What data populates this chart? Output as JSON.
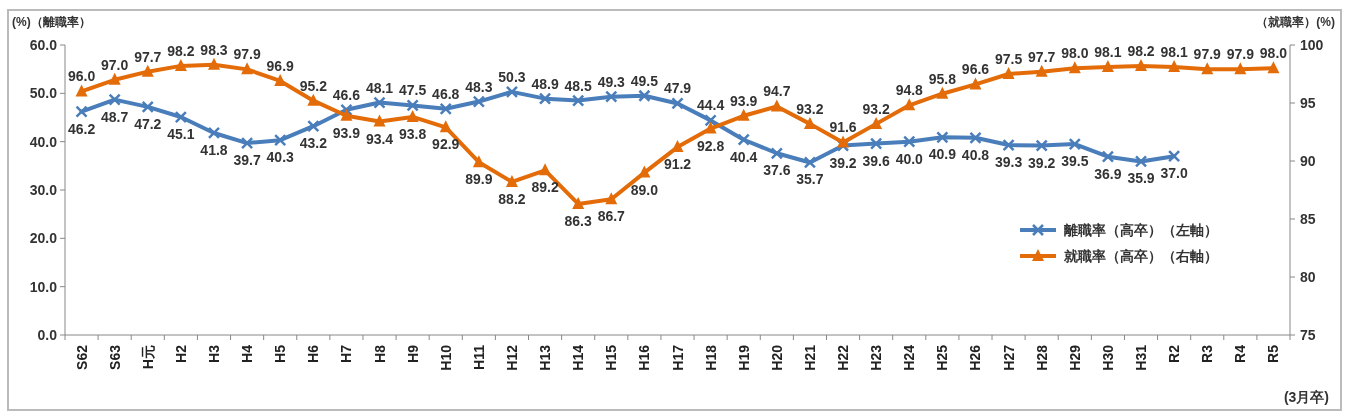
{
  "chart_data": {
    "type": "line",
    "ylabel": "(%)（離職率）",
    "y2label": "（就職率）(%)",
    "categories": [
      "S62",
      "S63",
      "H元",
      "H2",
      "H3",
      "H4",
      "H5",
      "H6",
      "H7",
      "H8",
      "H9",
      "H10",
      "H11",
      "H12",
      "H13",
      "H14",
      "H15",
      "H16",
      "H17",
      "H18",
      "H19",
      "H20",
      "H21",
      "H22",
      "H23",
      "H24",
      "H25",
      "H26",
      "H27",
      "H28",
      "H29",
      "H30",
      "H31",
      "R2",
      "R3",
      "R4",
      "R5"
    ],
    "series": [
      {
        "name": "離職率（高卒）（左軸）",
        "color": "#4a7ebb",
        "marker": "cross",
        "values": [
          46.2,
          48.7,
          47.2,
          45.1,
          41.8,
          39.7,
          40.3,
          43.2,
          46.6,
          48.1,
          47.5,
          46.8,
          48.3,
          50.3,
          48.9,
          48.5,
          49.3,
          49.5,
          47.9,
          44.4,
          40.4,
          37.6,
          35.7,
          39.2,
          39.6,
          40.0,
          40.9,
          40.8,
          39.3,
          39.2,
          39.5,
          36.9,
          35.9,
          37.0,
          null,
          null,
          null
        ],
        "value_labels": [
          "46.2",
          "48.7",
          "47.2",
          "45.1",
          "41.8",
          "39.7",
          "40.3",
          "43.2",
          "46.6",
          "48.1",
          "47.5",
          "46.8",
          "48.3",
          "50.3",
          "48.9",
          "48.5",
          "49.3",
          "49.5",
          "47.9",
          "44.4",
          "40.4",
          "37.6",
          "35.7",
          "39.2",
          "39.6",
          "40.0",
          "40.9",
          "40.8",
          "39.3",
          "39.2",
          "39.5",
          "36.9",
          "35.9",
          "37.0",
          null,
          null,
          null
        ]
      },
      {
        "name": "就職率（高卒）（右軸）",
        "color": "#e36c09",
        "marker": "triangle",
        "axis": "y2",
        "values": [
          96.0,
          97.0,
          97.7,
          98.2,
          98.3,
          97.9,
          96.9,
          95.2,
          93.9,
          93.4,
          93.8,
          92.9,
          89.9,
          88.2,
          89.2,
          86.3,
          86.7,
          89.0,
          91.2,
          92.8,
          93.9,
          94.7,
          93.2,
          91.6,
          93.2,
          94.8,
          95.8,
          96.6,
          97.5,
          97.7,
          98.0,
          98.1,
          98.2,
          98.1,
          97.9,
          97.9,
          98.0
        ],
        "value_labels": [
          "96.0",
          "97.0",
          "97.7",
          "98.2",
          "98.3",
          "97.9",
          "96.9",
          "95.2",
          "93.9",
          "93.4",
          "93.8",
          "92.9",
          "89.9",
          "88.2",
          "89.2",
          "86.3",
          "86.7",
          "89.0",
          "91.2",
          "92.8",
          "93.9",
          "94.7",
          "93.2",
          "91.6",
          "93.2",
          "94.8",
          "95.8",
          "96.6",
          "97.5",
          "97.7",
          "98.0",
          "98.1",
          "98.2",
          "98.1",
          "97.9",
          "97.9",
          "98.0"
        ]
      }
    ],
    "ylim": [
      0,
      60
    ],
    "yticks": [
      {
        "value": 0,
        "label": "0.0"
      },
      {
        "value": 10,
        "label": "10.0"
      },
      {
        "value": 20,
        "label": "20.0"
      },
      {
        "value": 30,
        "label": "30.0"
      },
      {
        "value": 40,
        "label": "40.0"
      },
      {
        "value": 50,
        "label": "50.0"
      },
      {
        "value": 60,
        "label": "60.0"
      }
    ],
    "y2lim": [
      75,
      100
    ],
    "y2ticks": [
      75,
      80,
      85,
      90,
      95,
      100
    ],
    "grid": false,
    "legend": "right",
    "line_style": "solid",
    "annotations": [
      "(3月卒)"
    ]
  }
}
